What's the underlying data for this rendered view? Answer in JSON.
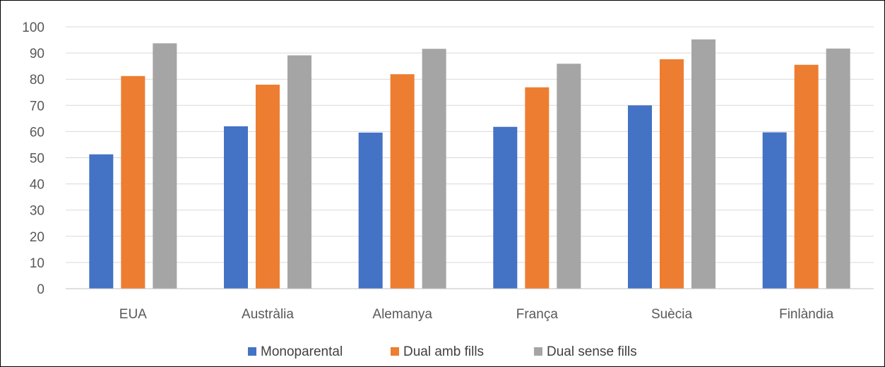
{
  "chart_data": {
    "type": "bar",
    "categories": [
      "EUA",
      "Austràlia",
      "Alemanya",
      "França",
      "Suècia",
      "Finlàndia"
    ],
    "series": [
      {
        "name": "Monoparental",
        "color": "#4472C4",
        "values": [
          51.3,
          62.0,
          59.6,
          61.8,
          70.0,
          59.7
        ]
      },
      {
        "name": "Dual amb fills",
        "color": "#ED7D31",
        "values": [
          81.2,
          77.9,
          81.9,
          76.9,
          87.6,
          85.5
        ]
      },
      {
        "name": "Dual sense fills",
        "color": "#A5A5A5",
        "values": [
          93.7,
          89.1,
          91.6,
          85.9,
          95.2,
          91.7
        ]
      }
    ],
    "ylim": [
      0,
      100
    ],
    "yticks": [
      0,
      10,
      20,
      30,
      40,
      50,
      60,
      70,
      80,
      90,
      100
    ],
    "grid": true,
    "legend_position": "bottom",
    "title": "",
    "xlabel": "",
    "ylabel": ""
  },
  "colors": {
    "gridline": "#D9D9D9",
    "axis": "#BFBFBF",
    "text": "#595959",
    "border": "#000000"
  }
}
